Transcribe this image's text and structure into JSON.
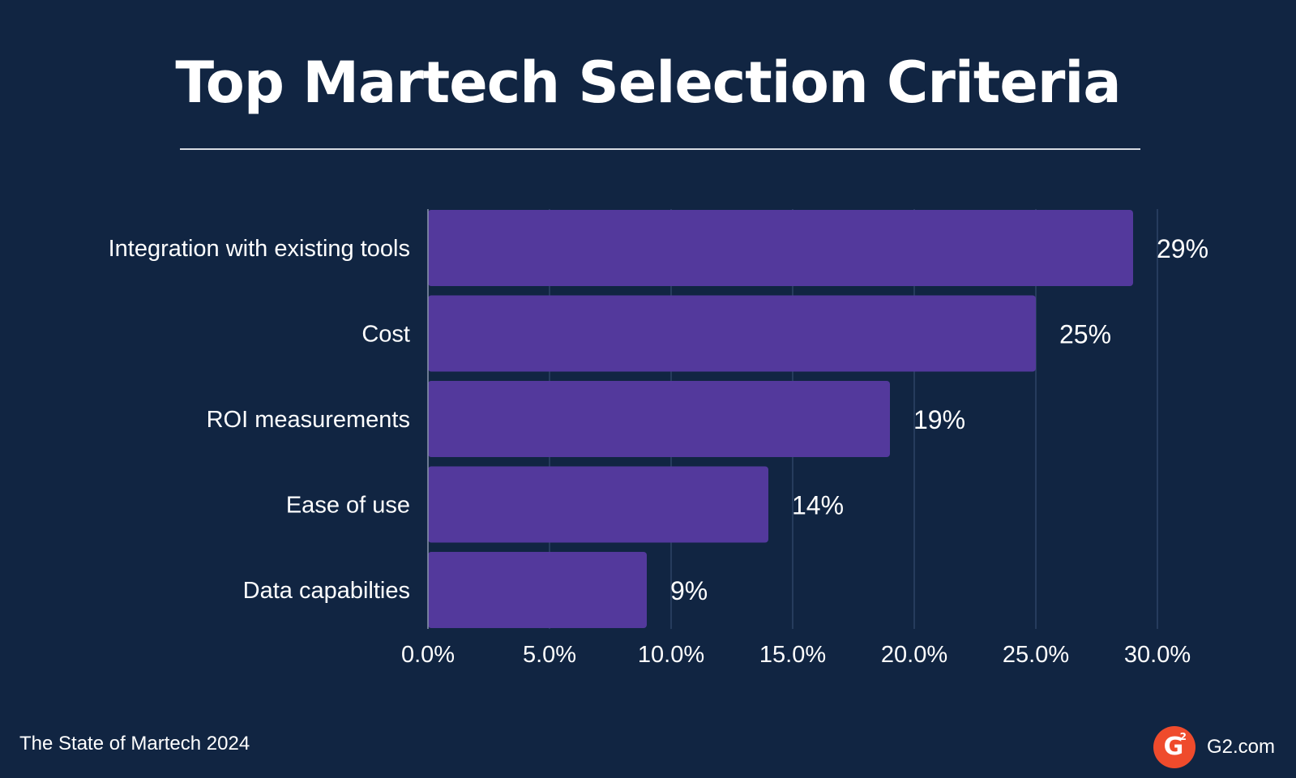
{
  "header": {
    "title": "Top Martech Selection Criteria"
  },
  "chart_data": {
    "type": "bar",
    "orientation": "horizontal",
    "title": "Top Martech Selection Criteria",
    "xlabel": "",
    "ylabel": "",
    "categories": [
      "Integration with existing tools",
      "Cost",
      "ROI measurements",
      "Ease of use",
      "Data capabilties"
    ],
    "values": [
      29,
      25,
      19,
      14,
      9
    ],
    "value_labels": [
      "29%",
      "25%",
      "19%",
      "14%",
      "9%"
    ],
    "xlim": [
      0,
      30
    ],
    "x_ticks": [
      0,
      5,
      10,
      15,
      20,
      25,
      30
    ],
    "x_tick_labels": [
      "0.0%",
      "5.0%",
      "10.0%",
      "15.0%",
      "20.0%",
      "25.0%",
      "30.0%"
    ],
    "grid": "vertical",
    "legend": "none",
    "bar_color": "#53399c",
    "grid_color": "#2e4466"
  },
  "footer": {
    "source": "The State of Martech 2024",
    "logo_letter": "G",
    "logo_superscript": "2",
    "site": "G2.com"
  },
  "colors": {
    "background": "#112542",
    "bar": "#53399c",
    "accent": "#ef4b2c",
    "text": "#ffffff"
  }
}
